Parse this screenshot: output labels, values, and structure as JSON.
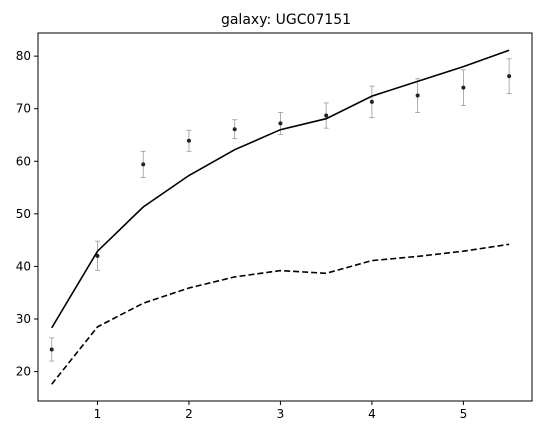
{
  "chart_data": {
    "type": "line",
    "title": "galaxy: UGC07151",
    "xlabel": "",
    "ylabel": "",
    "xlim": [
      0.35,
      5.75
    ],
    "ylim": [
      14.4,
      84.4
    ],
    "xticks": [
      1,
      2,
      3,
      4,
      5
    ],
    "yticks": [
      20,
      30,
      40,
      50,
      60,
      70,
      80
    ],
    "grid": false,
    "series": [
      {
        "style": "points-with-errorbars",
        "color": "#222222",
        "errorbar_color": "#999999",
        "x": [
          0.5,
          1.0,
          1.5,
          2.0,
          2.5,
          3.0,
          3.5,
          4.0,
          4.5,
          5.0,
          5.5
        ],
        "y": [
          24.2,
          42.0,
          59.4,
          63.9,
          66.1,
          67.2,
          68.7,
          71.3,
          72.5,
          74.0,
          76.2
        ],
        "yerr": [
          2.2,
          2.8,
          2.5,
          2.0,
          1.8,
          2.1,
          2.4,
          3.0,
          3.2,
          3.4,
          3.3
        ]
      },
      {
        "style": "solid",
        "color": "#000000",
        "x": [
          0.5,
          1.0,
          1.5,
          2.0,
          2.5,
          3.0,
          3.5,
          4.0,
          4.5,
          5.0,
          5.5
        ],
        "y": [
          28.3,
          42.9,
          51.3,
          57.3,
          62.2,
          66.0,
          68.1,
          72.4,
          75.2,
          78.0,
          81.1
        ]
      },
      {
        "style": "dashed",
        "color": "#000000",
        "x": [
          0.5,
          1.0,
          1.5,
          2.0,
          2.5,
          3.0,
          3.5,
          4.0,
          4.5,
          5.0,
          5.5
        ],
        "y": [
          17.6,
          28.5,
          33.0,
          35.9,
          38.0,
          39.2,
          38.7,
          41.1,
          41.9,
          42.9,
          44.2
        ]
      }
    ]
  }
}
